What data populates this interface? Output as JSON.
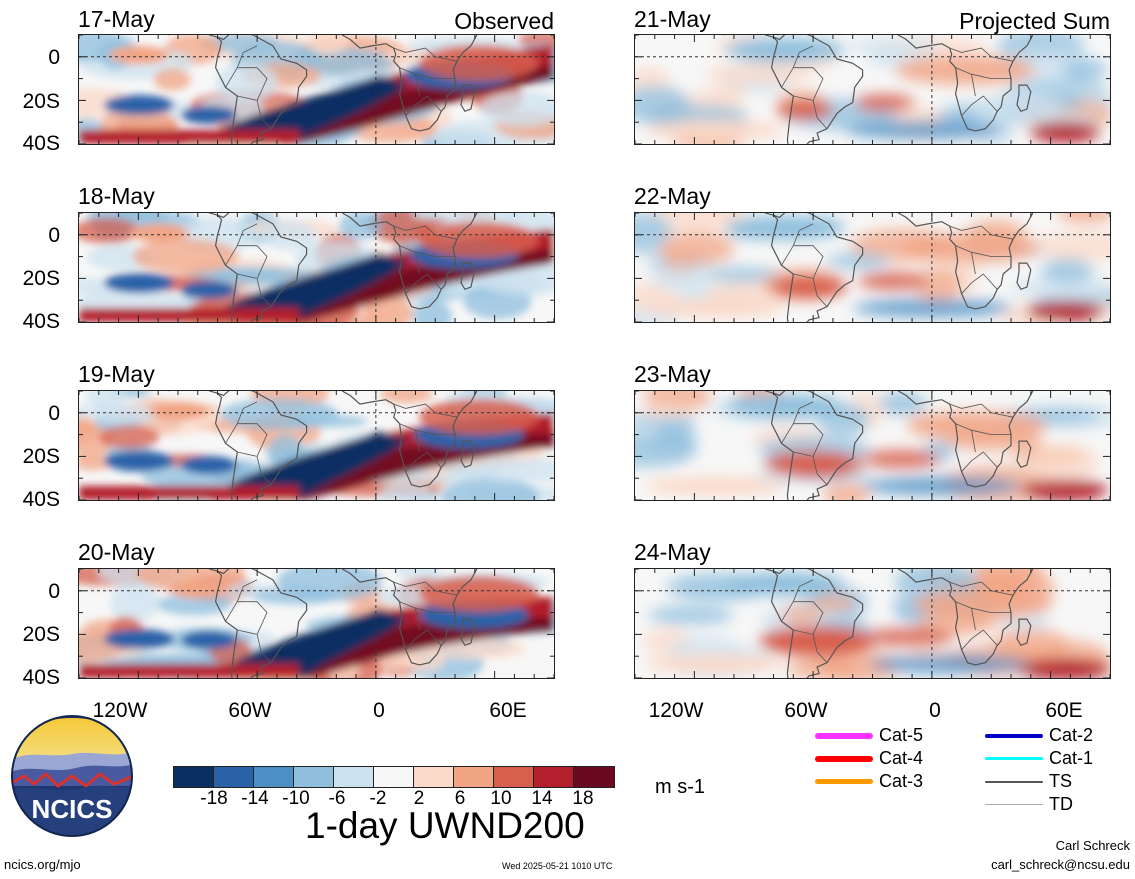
{
  "panels": [
    {
      "date": "17-May",
      "corner": "Observed"
    },
    {
      "date": "18-May",
      "corner": ""
    },
    {
      "date": "19-May",
      "corner": ""
    },
    {
      "date": "20-May",
      "corner": ""
    },
    {
      "date": "21-May",
      "corner": "Projected Sum"
    },
    {
      "date": "22-May",
      "corner": ""
    },
    {
      "date": "23-May",
      "corner": ""
    },
    {
      "date": "24-May",
      "corner": ""
    }
  ],
  "lat_ticks": [
    "0",
    "20S",
    "40S"
  ],
  "lon_ticks": [
    "120W",
    "60W",
    "0",
    "60E"
  ],
  "colorbar": {
    "colors": [
      "#0b2f62",
      "#2a62a8",
      "#4b8fc4",
      "#8fbfdd",
      "#cde2ef",
      "#f7f7f7",
      "#fbd9c8",
      "#f1a585",
      "#d75f4e",
      "#b31f2c",
      "#6b0a1f"
    ],
    "labels": [
      "-18",
      "-14",
      "-10",
      "-6",
      "-2",
      "2",
      "6",
      "10",
      "14",
      "18"
    ],
    "units": "m s-1"
  },
  "title": "1-day UWND200",
  "legend": [
    {
      "label": "Cat-5",
      "color": "#ff33ff"
    },
    {
      "label": "Cat-4",
      "color": "#ff0000"
    },
    {
      "label": "Cat-3",
      "color": "#ff9900"
    },
    {
      "label": "Cat-2",
      "color": "#0000cc"
    },
    {
      "label": "Cat-1",
      "color": "#00ffff"
    },
    {
      "label": "TS",
      "color": "#555555"
    },
    {
      "label": "TD",
      "color": "#aaaaaa"
    }
  ],
  "logo_text": "NCICS",
  "footer": {
    "left": "ncics.org/mjo",
    "timestamp": "Wed 2025-05-21 1010 UTC",
    "author": "Carl Schreck",
    "email": "carl_schreck@ncsu.edu"
  }
}
